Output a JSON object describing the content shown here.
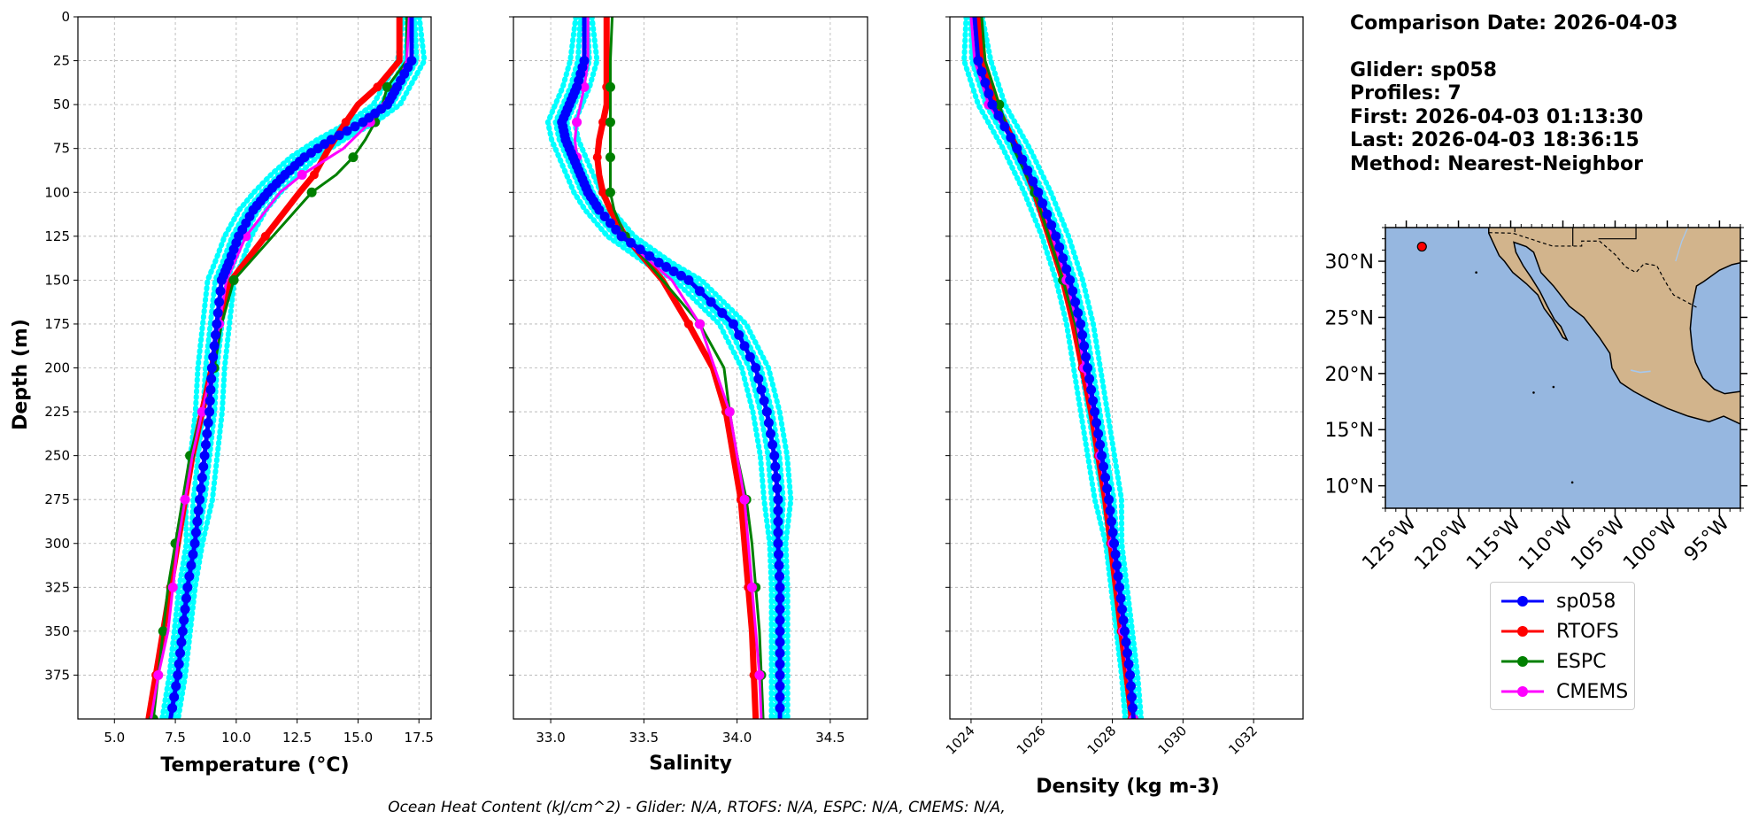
{
  "info": {
    "comparison_date": "Comparison Date: 2026-04-03",
    "glider": "Glider: sp058",
    "profiles": "Profiles: 7",
    "first": "First: 2026-04-03 01:13:30",
    "last": "Last: 2026-04-03 18:36:15",
    "method": "Method: Nearest-Neighbor"
  },
  "caption": "Ocean Heat Content (kJ/cm^2) - Glider: N/A,  RTOFS: N/A,  ESPC: N/A,  CMEMS: N/A,",
  "legend": [
    {
      "name": "sp058",
      "color": "#0000ff"
    },
    {
      "name": "RTOFS",
      "color": "#ff0000"
    },
    {
      "name": "ESPC",
      "color": "#008000"
    },
    {
      "name": "CMEMS",
      "color": "#ff00ff"
    }
  ],
  "colors": {
    "glider_profiles": "#00ffff",
    "ocean": "#96b7e0",
    "land": "#d2b48c"
  },
  "chart_data": [
    {
      "type": "line",
      "xlabel": "Temperature (°C)",
      "ylabel": "Depth (m)",
      "xlim": [
        3.5,
        18.0
      ],
      "ylim": [
        400,
        0
      ],
      "xticks": [
        "5.0",
        "7.5",
        "10.0",
        "12.5",
        "15.0",
        "17.5"
      ],
      "yticks": [
        "0",
        "25",
        "50",
        "75",
        "100",
        "125",
        "150",
        "175",
        "200",
        "225",
        "250",
        "275",
        "300",
        "325",
        "350",
        "375"
      ],
      "grid": true,
      "series": [
        {
          "name": "sp058",
          "depth": [
            0,
            25,
            40,
            50,
            60,
            70,
            80,
            90,
            100,
            110,
            125,
            140,
            150,
            175,
            200,
            225,
            250,
            275,
            300,
            325,
            350,
            375,
            400
          ],
          "values": [
            17.2,
            17.2,
            16.6,
            16.2,
            15.2,
            13.9,
            12.8,
            12.0,
            11.3,
            10.7,
            10.1,
            9.7,
            9.4,
            9.2,
            9.0,
            8.9,
            8.7,
            8.5,
            8.3,
            8.0,
            7.8,
            7.6,
            7.3
          ]
        },
        {
          "name": "RTOFS",
          "depth": [
            0,
            25,
            40,
            50,
            60,
            75,
            90,
            100,
            125,
            150,
            175,
            200,
            225,
            250,
            275,
            300,
            325,
            350,
            375,
            400
          ],
          "values": [
            16.7,
            16.7,
            15.8,
            15.0,
            14.5,
            13.8,
            13.2,
            12.6,
            11.2,
            9.8,
            9.3,
            9.0,
            8.6,
            8.2,
            7.9,
            7.6,
            7.3,
            7.0,
            6.7,
            6.4
          ]
        },
        {
          "name": "ESPC",
          "depth": [
            0,
            25,
            40,
            50,
            60,
            70,
            80,
            90,
            100,
            125,
            150,
            175,
            200,
            225,
            250,
            275,
            300,
            325,
            350,
            375,
            400
          ],
          "values": [
            17.0,
            17.0,
            16.2,
            16.0,
            15.7,
            15.3,
            14.8,
            14.1,
            13.1,
            11.5,
            9.9,
            9.4,
            9.1,
            8.6,
            8.1,
            7.8,
            7.5,
            7.2,
            7.0,
            6.8,
            6.6
          ]
        },
        {
          "name": "CMEMS",
          "depth": [
            0,
            25,
            40,
            50,
            60,
            75,
            90,
            100,
            125,
            150,
            175,
            200,
            225,
            250,
            275,
            300,
            325,
            350,
            375,
            400
          ],
          "values": [
            17.1,
            17.0,
            16.6,
            16.0,
            15.5,
            14.4,
            12.7,
            11.8,
            10.4,
            9.6,
            9.3,
            9.0,
            8.6,
            8.2,
            7.9,
            7.6,
            7.4,
            7.2,
            6.8,
            6.5
          ]
        }
      ]
    },
    {
      "type": "line",
      "xlabel": "Salinity",
      "xlim": [
        32.8,
        34.7
      ],
      "ylim": [
        400,
        0
      ],
      "xticks": [
        "33.0",
        "33.5",
        "34.0",
        "34.5"
      ],
      "grid": true,
      "series": [
        {
          "name": "sp058",
          "depth": [
            0,
            25,
            40,
            50,
            60,
            70,
            80,
            90,
            100,
            110,
            125,
            140,
            150,
            175,
            200,
            225,
            250,
            275,
            300,
            325,
            350,
            375,
            400
          ],
          "values": [
            33.18,
            33.18,
            33.14,
            33.1,
            33.06,
            33.08,
            33.12,
            33.16,
            33.2,
            33.26,
            33.38,
            33.58,
            33.74,
            33.98,
            34.1,
            34.16,
            34.2,
            34.22,
            34.22,
            34.23,
            34.23,
            34.23,
            34.23
          ]
        },
        {
          "name": "RTOFS",
          "depth": [
            0,
            25,
            40,
            50,
            60,
            70,
            80,
            90,
            100,
            110,
            125,
            150,
            175,
            200,
            225,
            250,
            275,
            300,
            325,
            350,
            375,
            400
          ],
          "values": [
            33.3,
            33.3,
            33.3,
            33.3,
            33.28,
            33.26,
            33.25,
            33.26,
            33.28,
            33.32,
            33.4,
            33.6,
            33.74,
            33.87,
            33.94,
            33.98,
            34.02,
            34.04,
            34.06,
            34.08,
            34.09,
            34.1
          ]
        },
        {
          "name": "ESPC",
          "depth": [
            0,
            25,
            40,
            50,
            60,
            70,
            80,
            90,
            100,
            110,
            125,
            150,
            175,
            200,
            225,
            250,
            275,
            300,
            325,
            350,
            375,
            400
          ],
          "values": [
            33.33,
            33.32,
            33.32,
            33.32,
            33.32,
            33.32,
            33.32,
            33.32,
            33.32,
            33.34,
            33.4,
            33.6,
            33.8,
            33.93,
            33.96,
            34.0,
            34.05,
            34.08,
            34.1,
            34.12,
            34.13,
            34.14
          ]
        },
        {
          "name": "CMEMS",
          "depth": [
            0,
            25,
            40,
            50,
            60,
            70,
            80,
            90,
            100,
            110,
            125,
            150,
            175,
            200,
            225,
            250,
            275,
            300,
            325,
            350,
            375,
            400
          ],
          "values": [
            33.2,
            33.2,
            33.18,
            33.16,
            33.14,
            33.13,
            33.14,
            33.16,
            33.2,
            33.26,
            33.38,
            33.65,
            33.8,
            33.88,
            33.96,
            34.0,
            34.04,
            34.06,
            34.08,
            34.1,
            34.12,
            34.13
          ]
        }
      ]
    },
    {
      "type": "line",
      "xlabel": "Density (kg m-3)",
      "xlim": [
        1023.4,
        1033.4
      ],
      "ylim": [
        400,
        0
      ],
      "xticks": [
        "1024",
        "1026",
        "1028",
        "1030",
        "1032"
      ],
      "grid": true,
      "series": [
        {
          "name": "sp058",
          "depth": [
            0,
            25,
            50,
            75,
            100,
            125,
            150,
            175,
            200,
            225,
            250,
            275,
            300,
            325,
            350,
            375,
            400
          ],
          "values": [
            1024.1,
            1024.2,
            1024.6,
            1025.3,
            1025.9,
            1026.4,
            1026.8,
            1027.1,
            1027.3,
            1027.5,
            1027.7,
            1027.9,
            1028.05,
            1028.2,
            1028.35,
            1028.5,
            1028.6
          ]
        },
        {
          "name": "RTOFS",
          "depth": [
            0,
            25,
            50,
            75,
            100,
            125,
            150,
            175,
            200,
            225,
            250,
            275,
            300,
            325,
            350,
            375,
            400
          ],
          "values": [
            1024.2,
            1024.3,
            1024.7,
            1025.3,
            1025.8,
            1026.2,
            1026.6,
            1026.9,
            1027.15,
            1027.4,
            1027.6,
            1027.8,
            1027.95,
            1028.1,
            1028.25,
            1028.4,
            1028.55
          ]
        },
        {
          "name": "ESPC",
          "depth": [
            0,
            25,
            50,
            75,
            100,
            125,
            150,
            175,
            200,
            225,
            250,
            275,
            300,
            325,
            350,
            375,
            400
          ],
          "values": [
            1024.3,
            1024.4,
            1024.8,
            1025.2,
            1025.8,
            1026.2,
            1026.6,
            1026.95,
            1027.2,
            1027.45,
            1027.65,
            1027.85,
            1028.0,
            1028.15,
            1028.3,
            1028.45,
            1028.6
          ]
        },
        {
          "name": "CMEMS",
          "depth": [
            0,
            25,
            50,
            75,
            100,
            125,
            150,
            175,
            200,
            225,
            250,
            275,
            300,
            325,
            350,
            375,
            400
          ],
          "values": [
            1024.0,
            1024.1,
            1024.5,
            1025.3,
            1025.9,
            1026.3,
            1026.7,
            1027.0,
            1027.2,
            1027.45,
            1027.65,
            1027.85,
            1028.0,
            1028.15,
            1028.3,
            1028.45,
            1028.6
          ]
        }
      ]
    },
    {
      "type": "map",
      "lon_range": [
        -127,
        -93
      ],
      "lat_range": [
        8,
        33
      ],
      "lat_ticks": [
        "30°N",
        "25°N",
        "20°N",
        "15°N",
        "10°N"
      ],
      "lon_ticks": [
        "125°W",
        "120°W",
        "115°W",
        "110°W",
        "105°W",
        "100°W",
        "95°W"
      ],
      "glider_position": {
        "lon": -123.5,
        "lat": 31.3
      }
    }
  ]
}
